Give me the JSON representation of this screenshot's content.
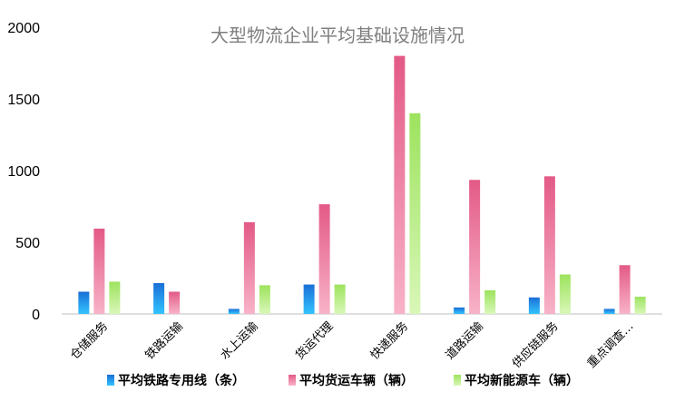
{
  "chart_data": {
    "type": "bar",
    "title": "大型物流企业平均基础设施情况",
    "categories": [
      "仓储服务",
      "铁路运输",
      "水上运输",
      "货运代理",
      "快递服务",
      "道路运输",
      "供应链服务",
      "重点调查…"
    ],
    "series": [
      {
        "name": "平均铁路专用线（条）",
        "values": [
          155,
          215,
          35,
          205,
          0,
          45,
          115,
          35
        ],
        "color": "#1e7bd9"
      },
      {
        "name": "平均货运车辆（辆）",
        "values": [
          595,
          155,
          640,
          765,
          1800,
          935,
          960,
          340
        ],
        "color": "#e8608a"
      },
      {
        "name": "平均新能源车（辆）",
        "values": [
          225,
          0,
          200,
          205,
          1400,
          165,
          275,
          120
        ],
        "color": "#a6ea6b"
      }
    ],
    "ylim": [
      0,
      2000
    ],
    "yticks": [
      "0",
      "500",
      "1000",
      "1500",
      "2000"
    ],
    "legend_position": "bottom",
    "grid": false
  }
}
